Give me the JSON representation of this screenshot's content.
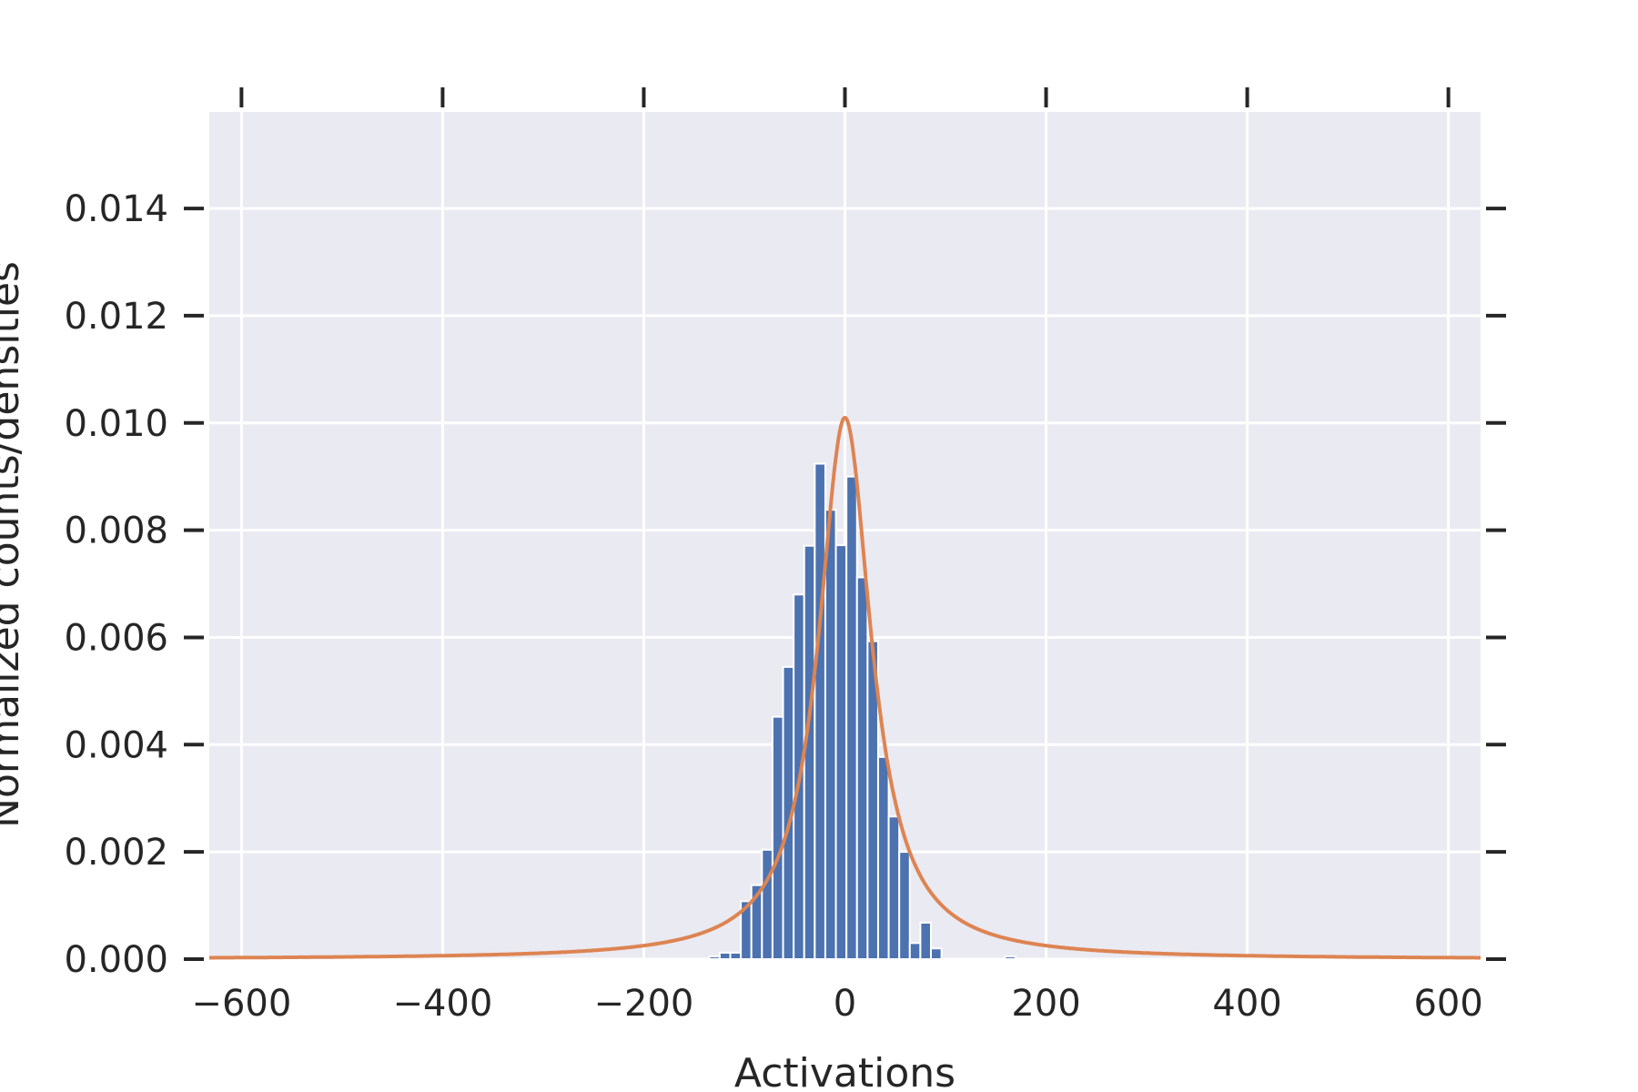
{
  "chart_data": {
    "type": "bar",
    "title": "",
    "xlabel": "Activations",
    "ylabel": "Normalized counts/densities",
    "xlim": [
      -632,
      632
    ],
    "ylim": [
      0,
      0.0158
    ],
    "x_ticks": [
      -600,
      -400,
      -200,
      0,
      200,
      400,
      600
    ],
    "x_tick_labels": [
      "−600",
      "−400",
      "−200",
      "0",
      "200",
      "400",
      "600"
    ],
    "y_ticks": [
      0,
      0.002,
      0.004,
      0.006,
      0.008,
      0.01,
      0.012,
      0.014
    ],
    "y_tick_labels": [
      "0.000",
      "0.002",
      "0.004",
      "0.006",
      "0.008",
      "0.010",
      "0.012",
      "0.014"
    ],
    "grid": true,
    "histogram": {
      "bin_width": 10.5,
      "color": "#4c72b0",
      "bins": [
        {
          "x": -135,
          "y": 5e-05
        },
        {
          "x": -124.5,
          "y": 0.00012
        },
        {
          "x": -114,
          "y": 0.00012
        },
        {
          "x": -103.5,
          "y": 0.00108
        },
        {
          "x": -93,
          "y": 0.00138
        },
        {
          "x": -82.5,
          "y": 0.00204
        },
        {
          "x": -72,
          "y": 0.00452
        },
        {
          "x": -61.5,
          "y": 0.00545
        },
        {
          "x": -51,
          "y": 0.0068
        },
        {
          "x": -40.5,
          "y": 0.00771
        },
        {
          "x": -30,
          "y": 0.00924
        },
        {
          "x": -19.5,
          "y": 0.00838
        },
        {
          "x": -9,
          "y": 0.00772
        },
        {
          "x": 1.5,
          "y": 0.009
        },
        {
          "x": 12,
          "y": 0.00712
        },
        {
          "x": 22.5,
          "y": 0.00593
        },
        {
          "x": 33,
          "y": 0.00377
        },
        {
          "x": 43.5,
          "y": 0.00266
        },
        {
          "x": 54,
          "y": 0.002
        },
        {
          "x": 64.5,
          "y": 0.0003
        },
        {
          "x": 75,
          "y": 0.00068
        },
        {
          "x": 85.5,
          "y": 0.0002
        },
        {
          "x": 159,
          "y": 5e-05
        }
      ]
    },
    "density_curve": {
      "type": "line",
      "color": "#dd8452",
      "peak_x": 0,
      "peak_y": 0.0101,
      "scale": 32,
      "shape": "cauchy"
    }
  }
}
